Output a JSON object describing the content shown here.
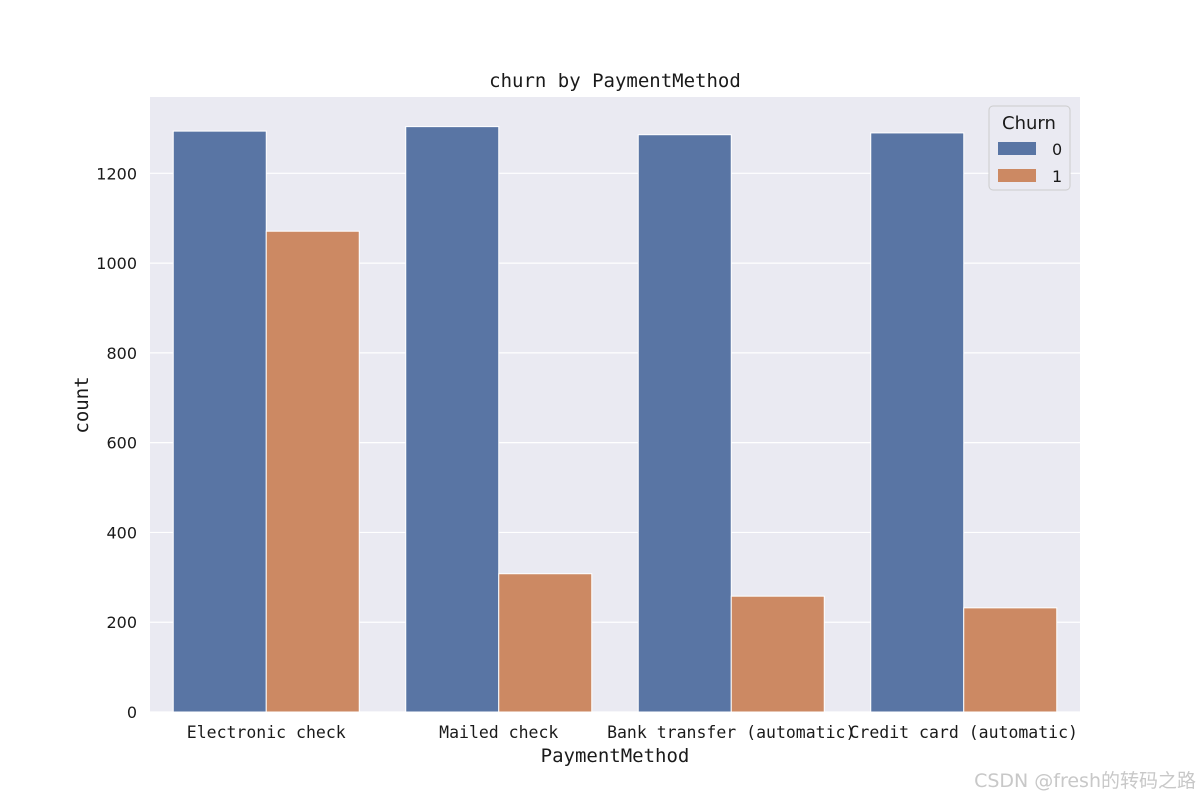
{
  "chart_data": {
    "type": "bar",
    "title": "churn by PaymentMethod",
    "xlabel": "PaymentMethod",
    "ylabel": "count",
    "categories": [
      "Electronic check",
      "Mailed check",
      "Bank transfer (automatic)",
      "Credit card (automatic)"
    ],
    "series": [
      {
        "name": "0",
        "values": [
          1294,
          1304,
          1286,
          1290
        ]
      },
      {
        "name": "1",
        "values": [
          1071,
          308,
          258,
          232
        ]
      }
    ],
    "ylim": [
      0,
      1370
    ],
    "yticks": [
      0,
      200,
      400,
      600,
      800,
      1000,
      1200
    ],
    "grid": true,
    "legend": {
      "title": "Churn",
      "placement": "top-right"
    },
    "colors": {
      "series": [
        "#5975a4",
        "#cc8963"
      ],
      "background": "#eaeaf2",
      "grid": "#ffffff"
    }
  },
  "watermark": "CSDN @fresh的转码之路"
}
